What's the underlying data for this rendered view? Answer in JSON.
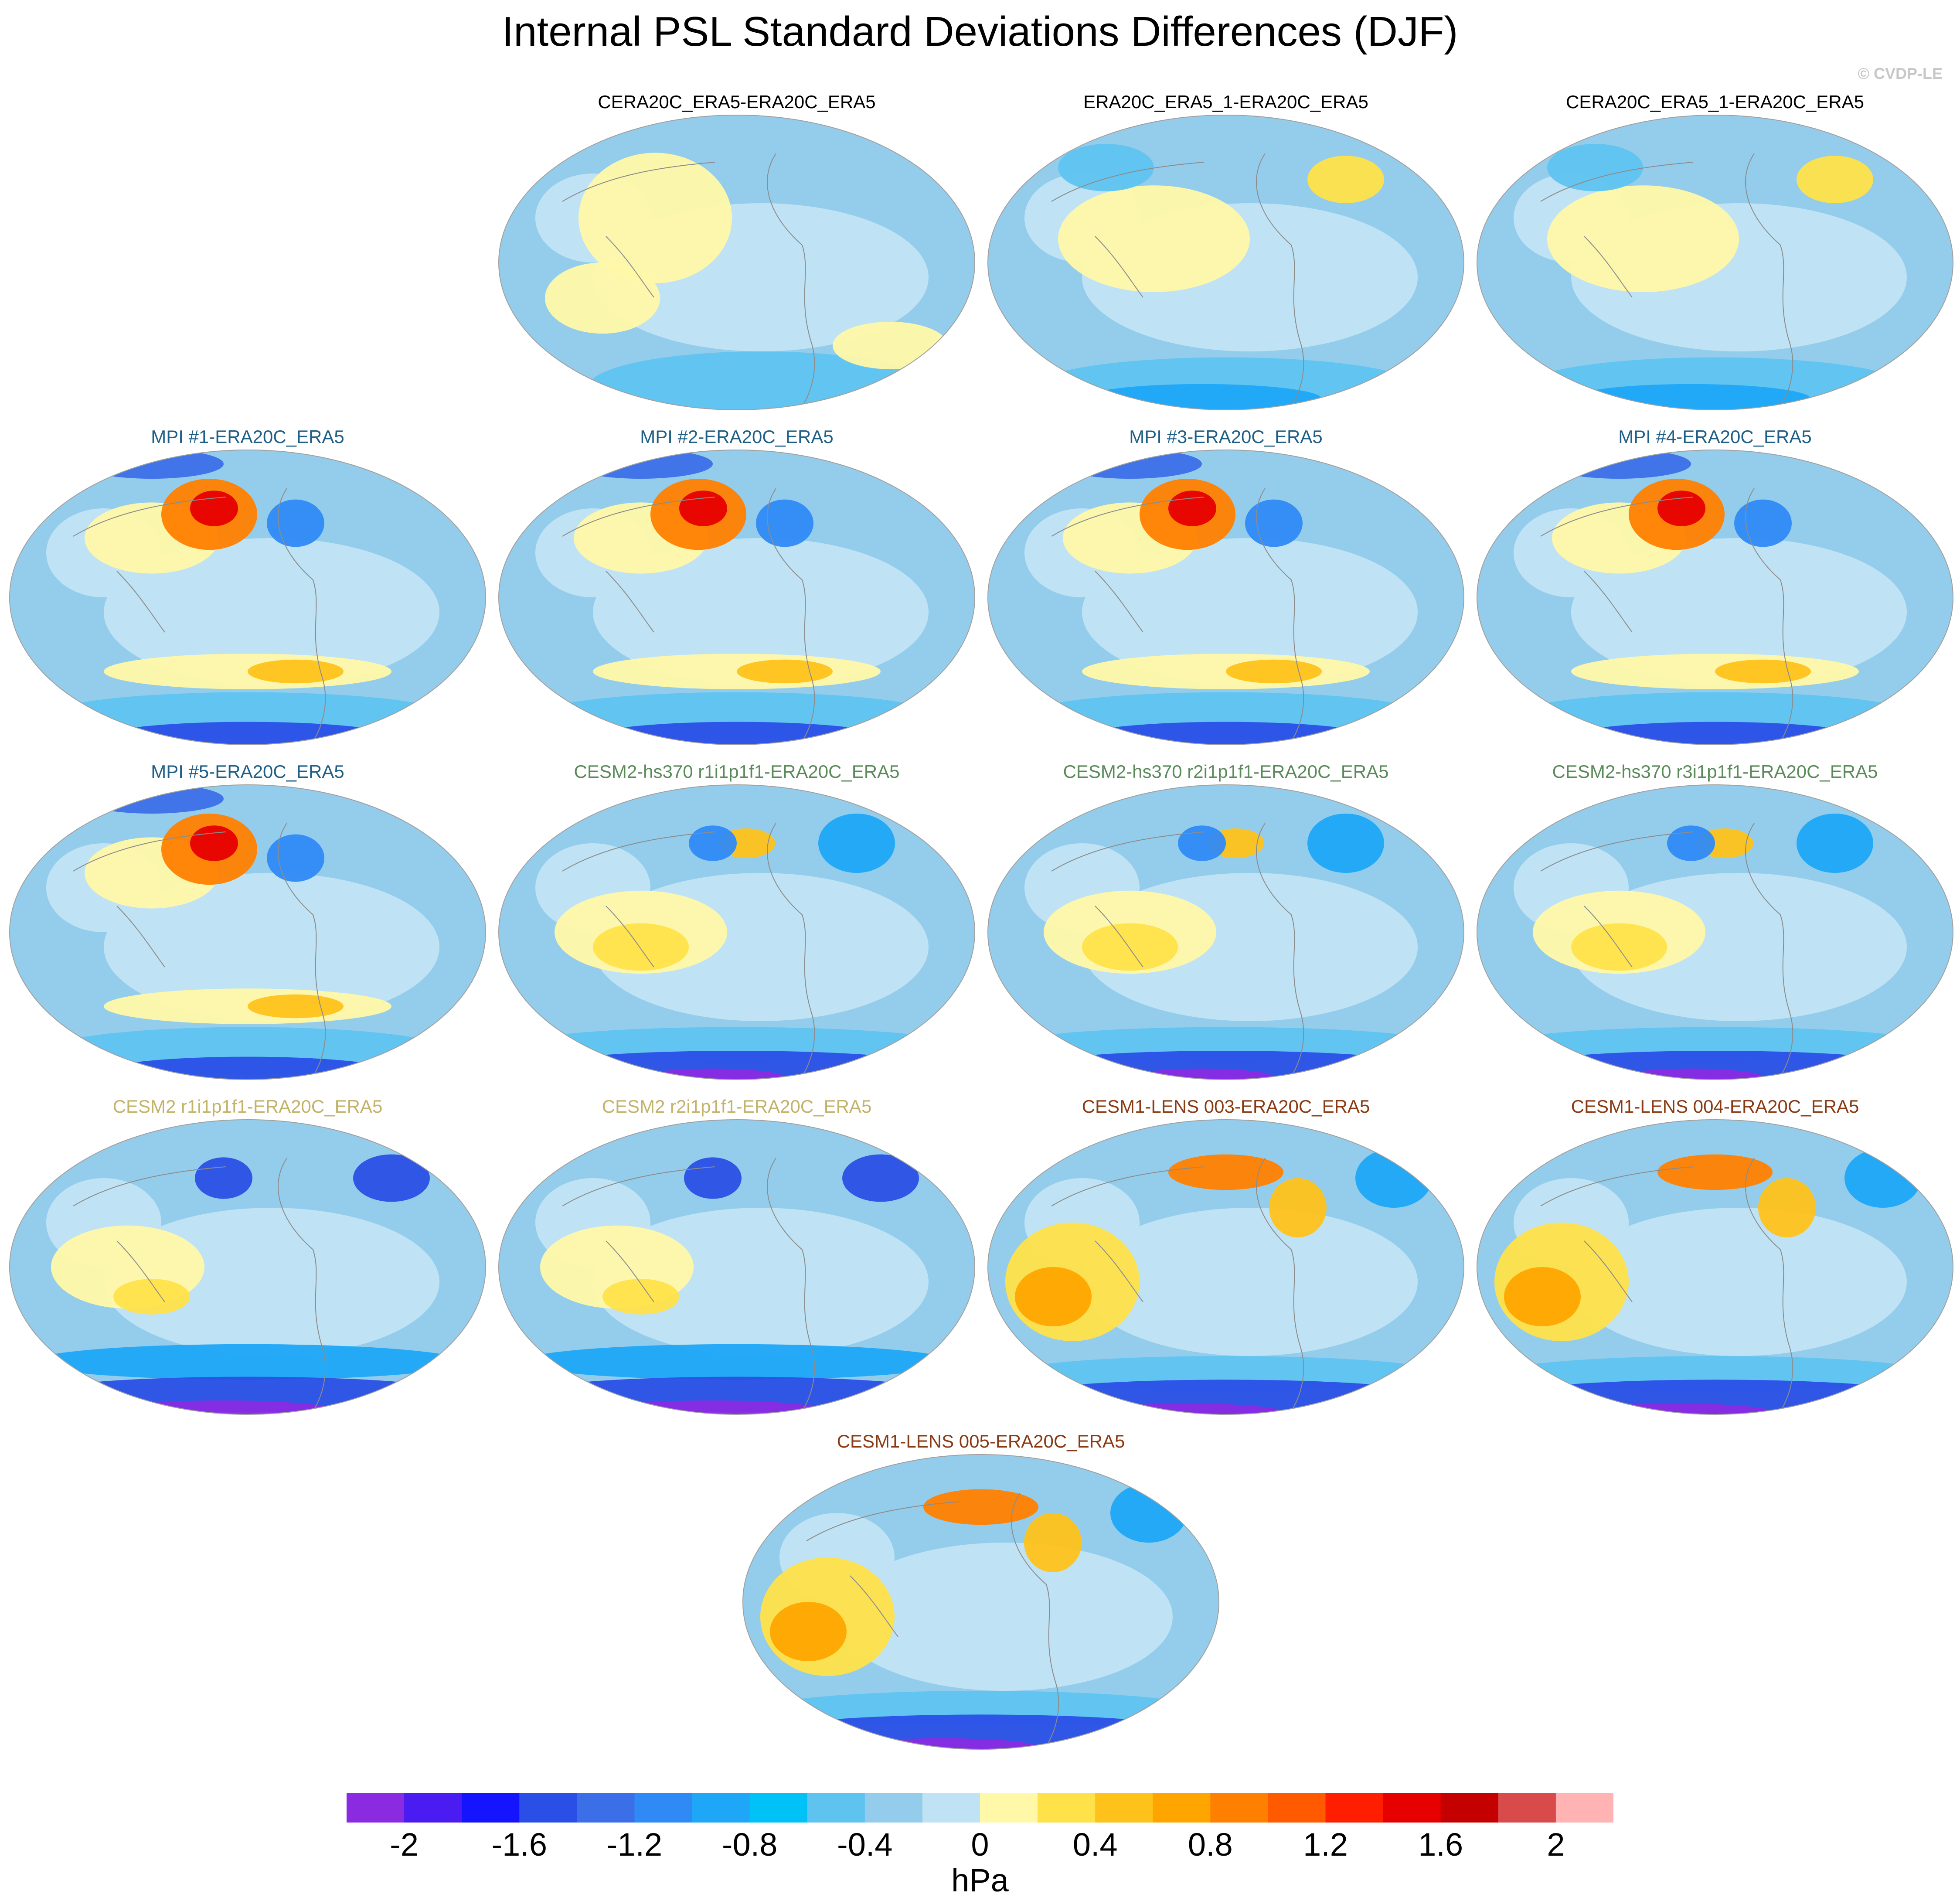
{
  "title": "Internal PSL Standard Deviations Differences (DJF)",
  "watermark": "© CVDP-LE",
  "colors": {
    "obs_title": "#000000",
    "mpi_title": "#1f5f86",
    "cesm2hs_title": "#5a8a5a",
    "cesm2_title": "#c2b26a",
    "cesm1_title": "#8a3a12"
  },
  "panels": [
    {
      "label": "CERA20C_ERA5-ERA20C_ERA5",
      "group": "obs",
      "style": "weak"
    },
    {
      "label": "ERA20C_ERA5_1-ERA20C_ERA5",
      "group": "obs",
      "style": "weak2"
    },
    {
      "label": "CERA20C_ERA5_1-ERA20C_ERA5",
      "group": "obs",
      "style": "weak2"
    },
    {
      "label": "MPI #1-ERA20C_ERA5",
      "group": "mpi",
      "style": "mpi"
    },
    {
      "label": "MPI #2-ERA20C_ERA5",
      "group": "mpi",
      "style": "mpi"
    },
    {
      "label": "MPI #3-ERA20C_ERA5",
      "group": "mpi",
      "style": "mpi"
    },
    {
      "label": "MPI #4-ERA20C_ERA5",
      "group": "mpi",
      "style": "mpi"
    },
    {
      "label": "MPI #5-ERA20C_ERA5",
      "group": "mpi",
      "style": "mpi"
    },
    {
      "label": "CESM2-hs370 r1i1p1f1-ERA20C_ERA5",
      "group": "cesm2hs",
      "style": "cesm"
    },
    {
      "label": "CESM2-hs370 r2i1p1f1-ERA20C_ERA5",
      "group": "cesm2hs",
      "style": "cesm"
    },
    {
      "label": "CESM2-hs370 r3i1p1f1-ERA20C_ERA5",
      "group": "cesm2hs",
      "style": "cesm"
    },
    {
      "label": "CESM2 r1i1p1f1-ERA20C_ERA5",
      "group": "cesm2",
      "style": "cesm2"
    },
    {
      "label": "CESM2 r2i1p1f1-ERA20C_ERA5",
      "group": "cesm2",
      "style": "cesm2"
    },
    {
      "label": "CESM1-LENS 003-ERA20C_ERA5",
      "group": "cesm1",
      "style": "cesm1"
    },
    {
      "label": "CESM1-LENS 004-ERA20C_ERA5",
      "group": "cesm1",
      "style": "cesm1"
    },
    {
      "label": "CESM1-LENS 005-ERA20C_ERA5",
      "group": "cesm1",
      "style": "cesm1"
    }
  ],
  "colorbar": {
    "units": "hPa",
    "colors": [
      "#8a2be2",
      "#4b1cf2",
      "#1414ff",
      "#2a4fe6",
      "#3b6fe8",
      "#2f8af5",
      "#1ea6f7",
      "#00c2f7",
      "#5fc3f0",
      "#94cdec",
      "#bfe3f4",
      "#fff8a8",
      "#ffe24a",
      "#ffc21a",
      "#ffa500",
      "#ff8000",
      "#ff5a00",
      "#ff1e00",
      "#e60000",
      "#c40000",
      "#d94a4a",
      "#ffb3b3"
    ],
    "tick_labels": [
      "-2",
      "-1.6",
      "-1.2",
      "-0.8",
      "-0.4",
      "0",
      "0.4",
      "0.8",
      "1.2",
      "1.6",
      "2"
    ]
  }
}
